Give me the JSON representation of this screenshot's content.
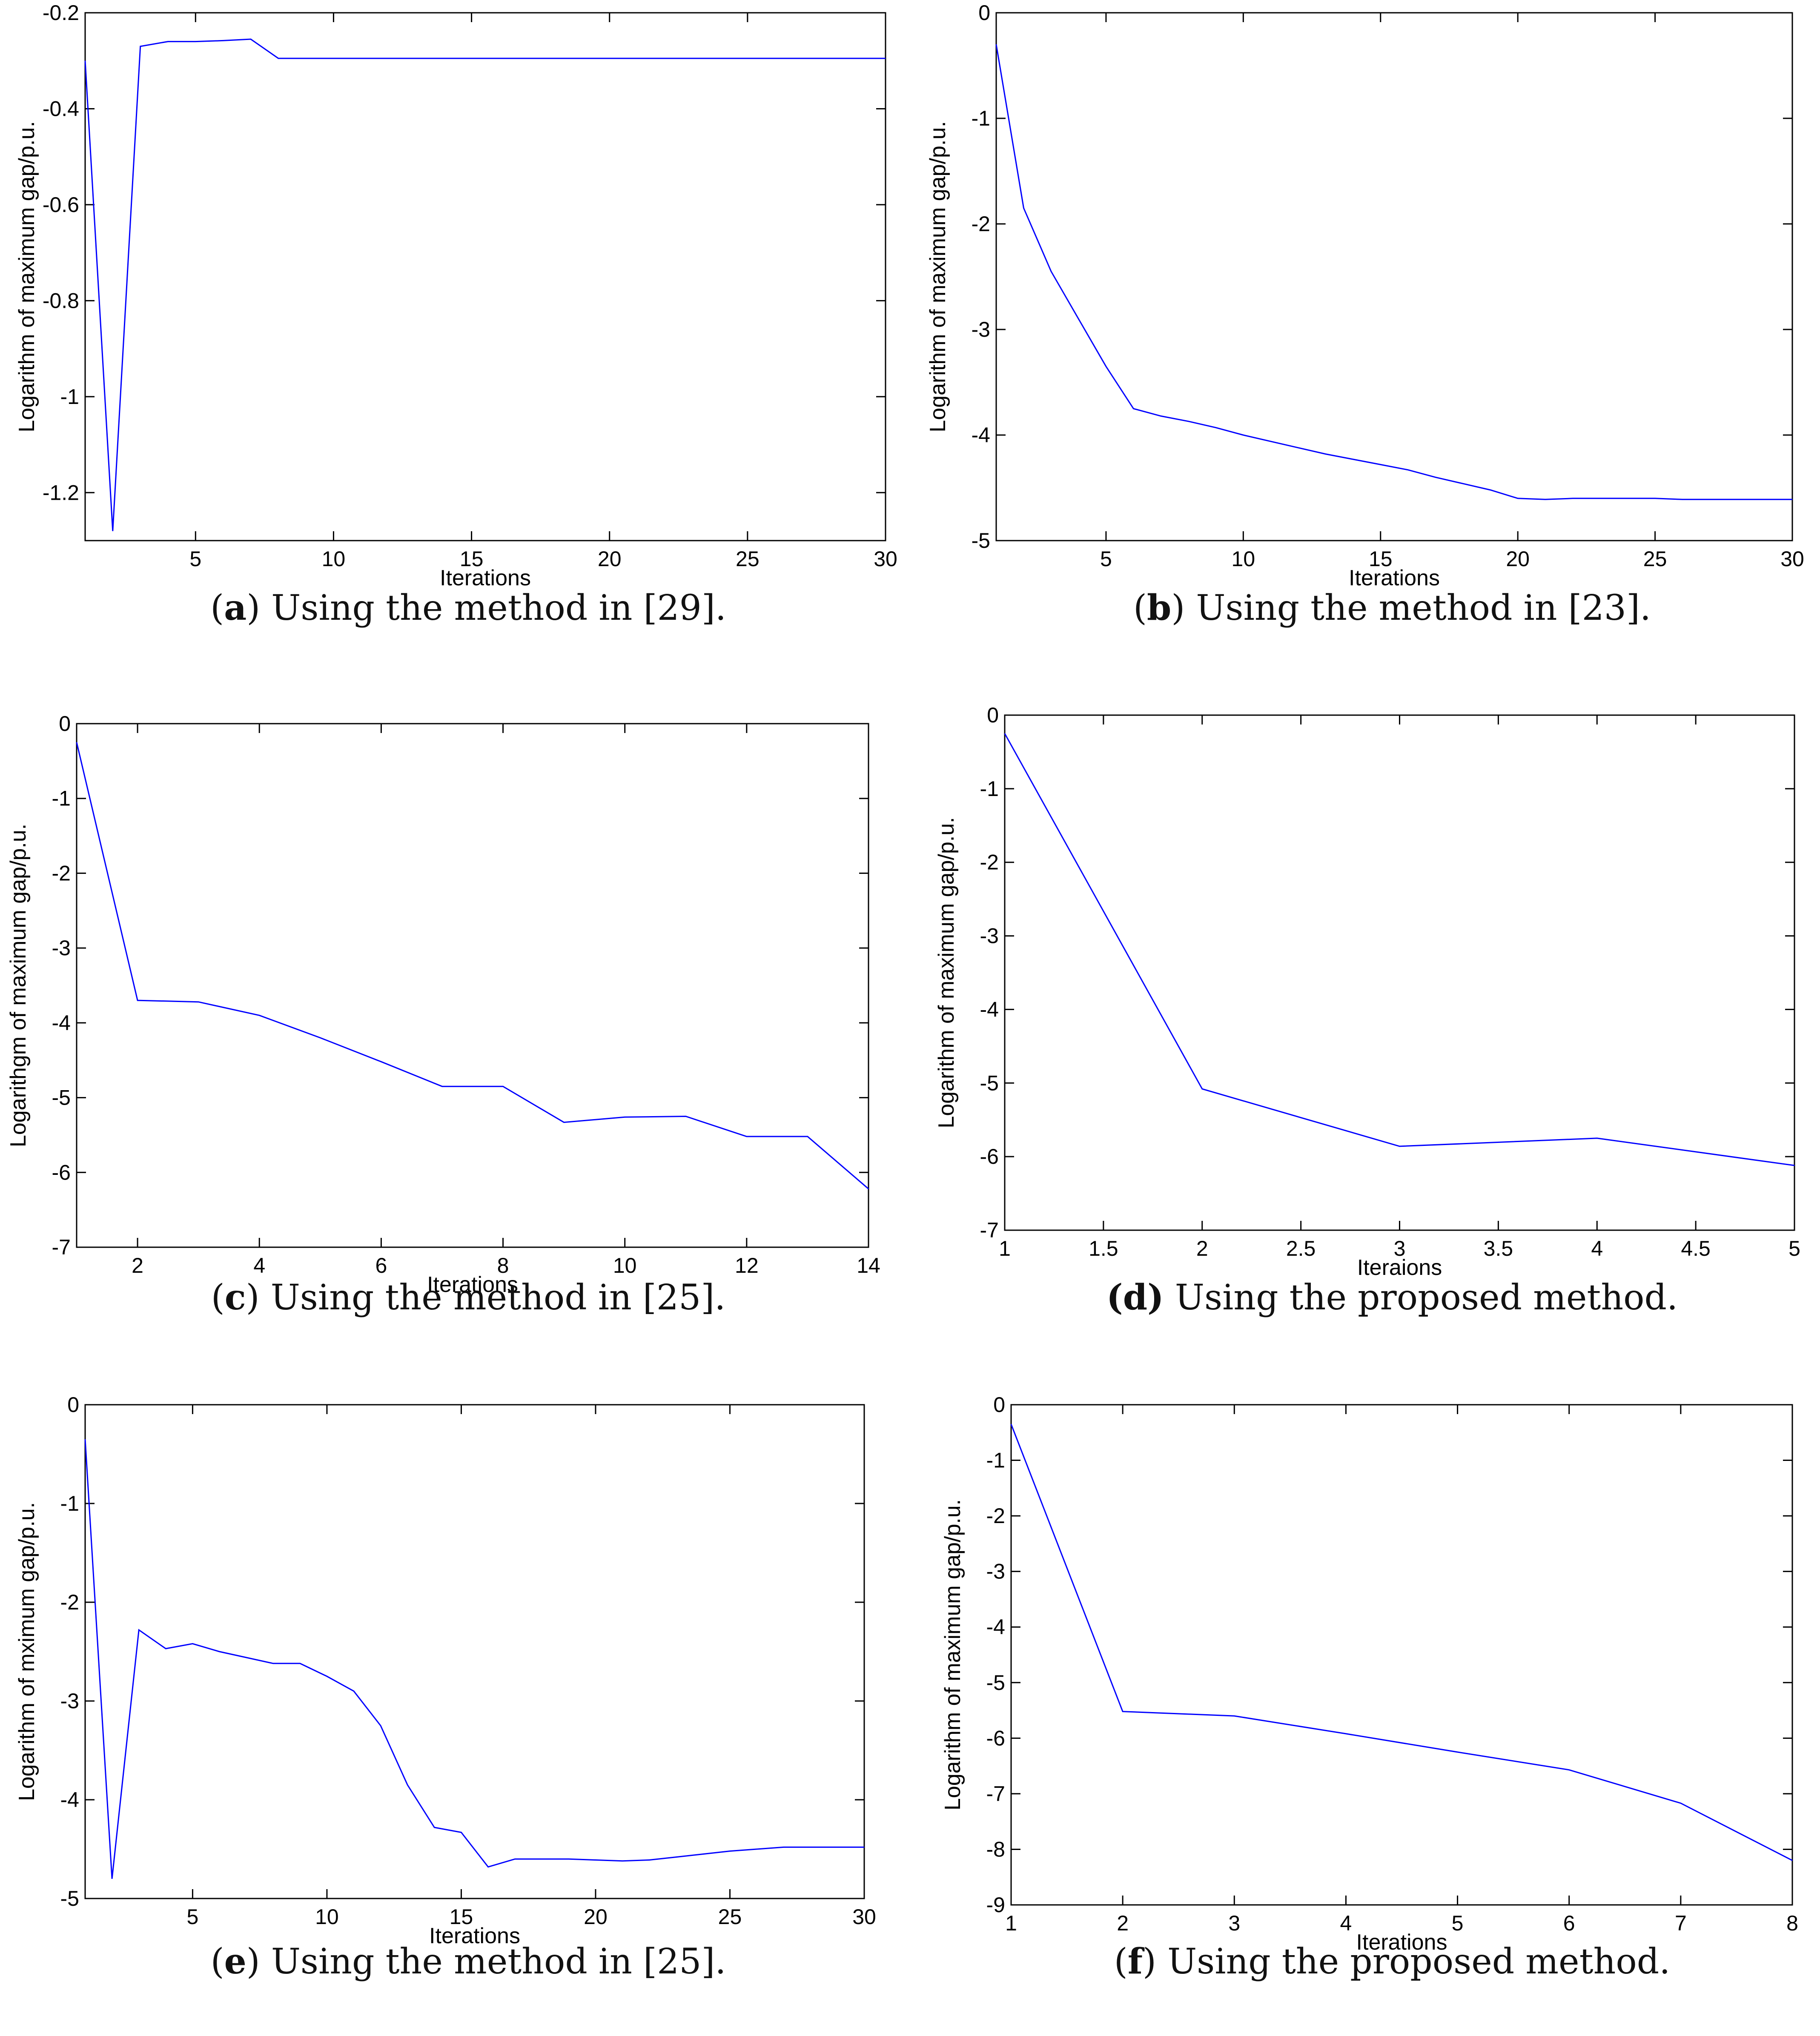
{
  "chart_data": [
    {
      "id": "a",
      "type": "line",
      "caption_letter": "a",
      "caption_paren_open": "(",
      "caption_paren_close": ")",
      "caption_text": " Using the method in [29].",
      "xlabel": "Iterations",
      "ylabel": "Logarithm of maximum gap/p.u.",
      "xlim": [
        1,
        30
      ],
      "ylim": [
        -1.3,
        -0.2
      ],
      "xticks": [
        5,
        10,
        15,
        20,
        25,
        30
      ],
      "xtick_labels": [
        "5",
        "10",
        "15",
        "20",
        "25",
        "30"
      ],
      "yticks": [
        -0.2,
        -0.4,
        -0.6,
        -0.8,
        -1,
        -1.2
      ],
      "ytick_labels": [
        "-0.2",
        "-0.4",
        "-0.6",
        "-0.8",
        "-1",
        "-1.2"
      ],
      "line_color": "#0000ff",
      "x": [
        1,
        2,
        3,
        4,
        5,
        6,
        7,
        8,
        9,
        10,
        15,
        20,
        25,
        30
      ],
      "y": [
        -0.3,
        -1.28,
        -0.27,
        -0.26,
        -0.26,
        -0.258,
        -0.255,
        -0.295,
        -0.295,
        -0.295,
        -0.295,
        -0.295,
        -0.295,
        -0.295
      ]
    },
    {
      "id": "b",
      "type": "line",
      "caption_letter": "b",
      "caption_paren_open": "(",
      "caption_paren_close": ")",
      "caption_text": " Using the method in [23].",
      "xlabel": "Iterations",
      "ylabel": "Logarithm of maximum gap/p.u.",
      "xlim": [
        1,
        30
      ],
      "ylim": [
        -5,
        0
      ],
      "xticks": [
        5,
        10,
        15,
        20,
        25,
        30
      ],
      "xtick_labels": [
        "5",
        "10",
        "15",
        "20",
        "25",
        "30"
      ],
      "yticks": [
        0,
        -1,
        -2,
        -3,
        -4,
        -5
      ],
      "ytick_labels": [
        "0",
        "-1",
        "-2",
        "-3",
        "-4",
        "-5"
      ],
      "line_color": "#0000ff",
      "x": [
        1,
        2,
        3,
        4,
        5,
        6,
        7,
        8,
        9,
        10,
        11,
        12,
        13,
        14,
        15,
        16,
        17,
        18,
        19,
        20,
        21,
        22,
        23,
        24,
        25,
        26,
        27,
        28,
        29,
        30
      ],
      "y": [
        -0.3,
        -1.85,
        -2.45,
        -2.9,
        -3.35,
        -3.75,
        -3.82,
        -3.87,
        -3.93,
        -4.0,
        -4.06,
        -4.12,
        -4.18,
        -4.23,
        -4.28,
        -4.33,
        -4.4,
        -4.46,
        -4.52,
        -4.6,
        -4.61,
        -4.6,
        -4.6,
        -4.6,
        -4.6,
        -4.61,
        -4.61,
        -4.61,
        -4.61,
        -4.61
      ]
    },
    {
      "id": "c",
      "type": "line",
      "caption_letter": "c",
      "caption_paren_open": "(",
      "caption_paren_close": ")",
      "caption_text": " Using the method in [25].",
      "xlabel": "Iterations",
      "ylabel": "Logarithgm of maximum gap/p.u.",
      "xlim": [
        1,
        14
      ],
      "ylim": [
        -7,
        0
      ],
      "xticks": [
        2,
        4,
        6,
        8,
        10,
        12,
        14
      ],
      "xtick_labels": [
        "2",
        "4",
        "6",
        "8",
        "10",
        "12",
        "14"
      ],
      "yticks": [
        0,
        -1,
        -2,
        -3,
        -4,
        -5,
        -6,
        -7
      ],
      "ytick_labels": [
        "0",
        "-1",
        "-2",
        "-3",
        "-4",
        "-5",
        "-6",
        "-7"
      ],
      "line_color": "#0000ff",
      "x": [
        1,
        2,
        3,
        4,
        5,
        6,
        7,
        8,
        9,
        10,
        11,
        12,
        13,
        14
      ],
      "y": [
        -0.25,
        -3.7,
        -3.72,
        -3.9,
        -4.2,
        -4.52,
        -4.85,
        -4.85,
        -5.33,
        -5.26,
        -5.25,
        -5.52,
        -5.52,
        -6.22
      ]
    },
    {
      "id": "d",
      "type": "line",
      "caption_letter": "(d)",
      "caption_paren_open": "",
      "caption_paren_close": "",
      "caption_text": " Using the proposed method.",
      "xlabel": "Iteraions",
      "ylabel": "Logarithm of maximum gap/p.u.",
      "xlim": [
        1,
        5
      ],
      "ylim": [
        -7,
        0
      ],
      "xticks": [
        1,
        1.5,
        2,
        2.5,
        3,
        3.5,
        4,
        4.5,
        5
      ],
      "xtick_labels": [
        "1",
        "1.5",
        "2",
        "2.5",
        "3",
        "3.5",
        "4",
        "4.5",
        "5"
      ],
      "yticks": [
        0,
        -1,
        -2,
        -3,
        -4,
        -5,
        -6,
        -7
      ],
      "ytick_labels": [
        "0",
        "-1",
        "-2",
        "-3",
        "-4",
        "-5",
        "-6",
        "-7"
      ],
      "line_color": "#0000ff",
      "x": [
        1,
        2,
        3,
        4,
        5
      ],
      "y": [
        -0.25,
        -5.08,
        -5.86,
        -5.75,
        -6.12
      ]
    },
    {
      "id": "e",
      "type": "line",
      "caption_letter": "e",
      "caption_paren_open": "(",
      "caption_paren_close": ")",
      "caption_text": " Using the method in [25].",
      "xlabel": "Iterations",
      "ylabel": "Logarithm of mximum gap/p.u.",
      "xlim": [
        1,
        30
      ],
      "ylim": [
        -5,
        0
      ],
      "xticks": [
        5,
        10,
        15,
        20,
        25,
        30
      ],
      "xtick_labels": [
        "5",
        "10",
        "15",
        "20",
        "25",
        "30"
      ],
      "yticks": [
        0,
        -1,
        -2,
        -3,
        -4,
        -5
      ],
      "ytick_labels": [
        "0",
        "-1",
        "-2",
        "-3",
        "-4",
        "-5"
      ],
      "line_color": "#0000ff",
      "x": [
        1,
        2,
        3,
        4,
        5,
        6,
        7,
        8,
        9,
        10,
        11,
        12,
        13,
        14,
        15,
        16,
        17,
        18,
        19,
        20,
        21,
        22,
        23,
        24,
        25,
        26,
        27,
        28,
        29,
        30
      ],
      "y": [
        -0.35,
        -4.8,
        -2.28,
        -2.47,
        -2.42,
        -2.5,
        -2.56,
        -2.62,
        -2.62,
        -2.75,
        -2.9,
        -3.25,
        -3.85,
        -4.28,
        -4.33,
        -4.68,
        -4.6,
        -4.6,
        -4.6,
        -4.61,
        -4.62,
        -4.61,
        -4.58,
        -4.55,
        -4.52,
        -4.5,
        -4.48,
        -4.48,
        -4.48,
        -4.48
      ]
    },
    {
      "id": "f",
      "type": "line",
      "caption_letter": "f",
      "caption_paren_open": "(",
      "caption_paren_close": ")",
      "caption_text": " Using the proposed method.",
      "xlabel": "Iterations",
      "ylabel": "Logarithm of maximum gap/p.u.",
      "xlim": [
        1,
        8
      ],
      "ylim": [
        -9,
        0
      ],
      "xticks": [
        1,
        2,
        3,
        4,
        5,
        6,
        7,
        8
      ],
      "xtick_labels": [
        "1",
        "2",
        "3",
        "4",
        "5",
        "6",
        "7",
        "8"
      ],
      "yticks": [
        0,
        -1,
        -2,
        -3,
        -4,
        -5,
        -6,
        -7,
        -8,
        -9
      ],
      "ytick_labels": [
        "0",
        "-1",
        "-2",
        "-3",
        "-4",
        "-5",
        "-6",
        "-7",
        "-8",
        "-9"
      ],
      "line_color": "#0000ff",
      "x": [
        1,
        2,
        3,
        4,
        5,
        6,
        7,
        8
      ],
      "y": [
        -0.35,
        -5.52,
        -5.6,
        -5.92,
        -6.25,
        -6.57,
        -7.17,
        -8.2
      ]
    }
  ]
}
